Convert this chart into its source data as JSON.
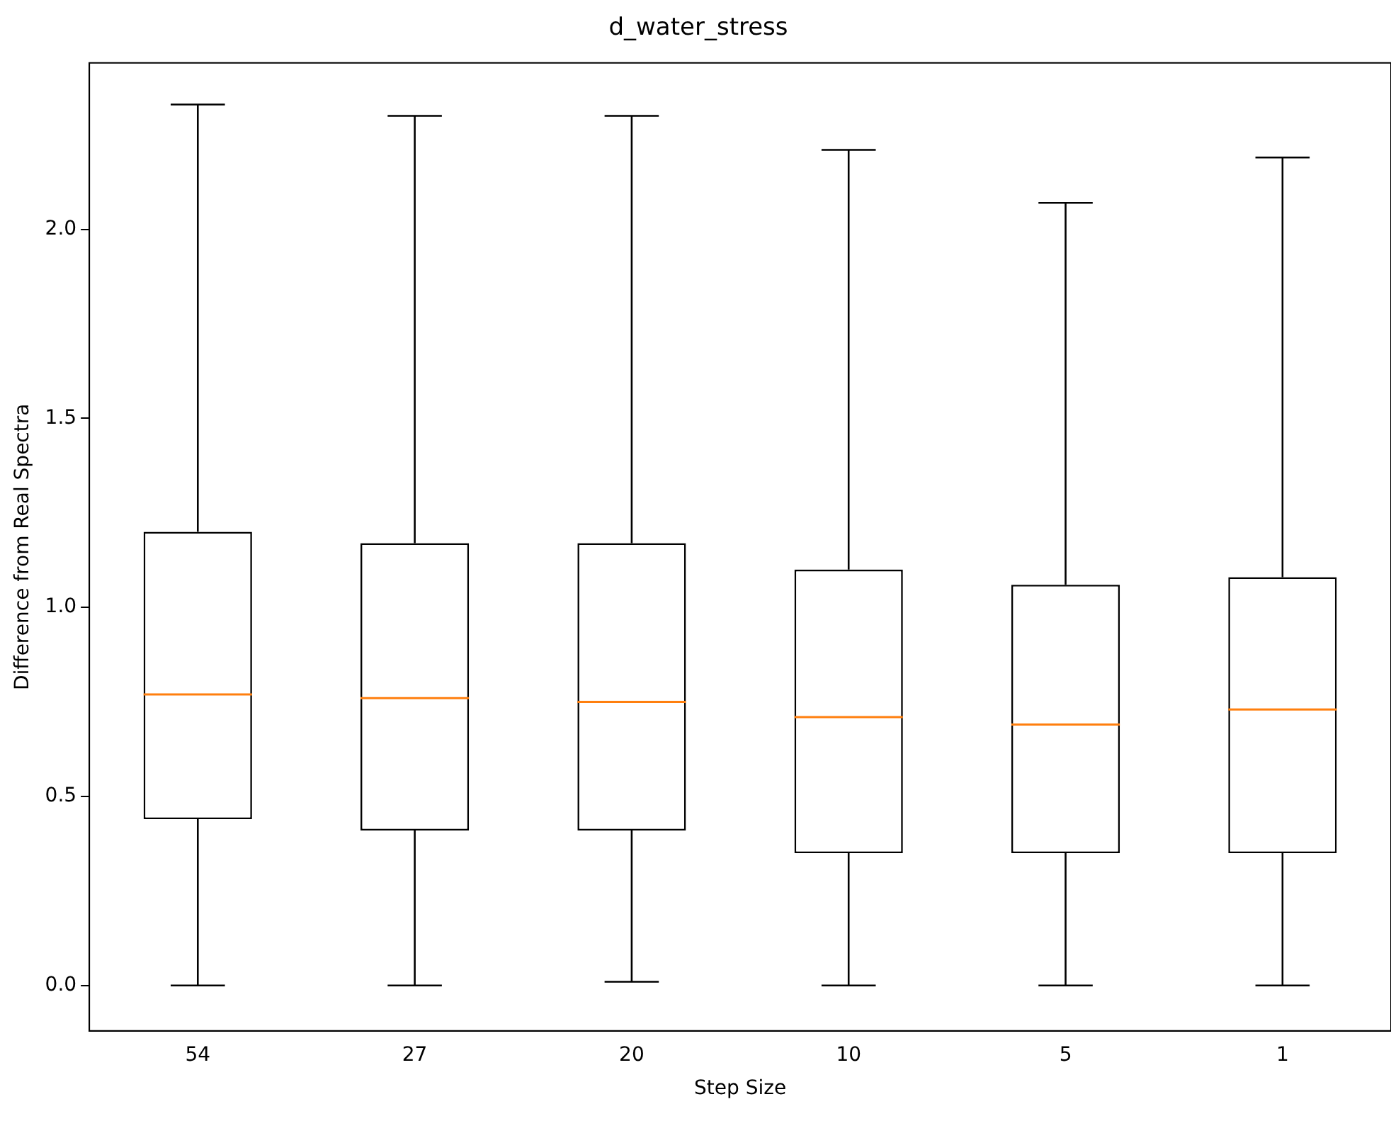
{
  "chart_data": {
    "type": "box",
    "title": "d_water_stress",
    "xlabel": "Step Size",
    "ylabel": "Difference from Real Spectra",
    "categories": [
      "54",
      "27",
      "20",
      "10",
      "5",
      "1"
    ],
    "boxes": [
      {
        "low": 0.0,
        "q1": 0.44,
        "median": 0.77,
        "q3": 1.2,
        "high": 2.33
      },
      {
        "low": 0.0,
        "q1": 0.41,
        "median": 0.76,
        "q3": 1.17,
        "high": 2.3
      },
      {
        "low": 0.01,
        "q1": 0.41,
        "median": 0.75,
        "q3": 1.17,
        "high": 2.3
      },
      {
        "low": 0.0,
        "q1": 0.35,
        "median": 0.71,
        "q3": 1.1,
        "high": 2.21
      },
      {
        "low": 0.0,
        "q1": 0.35,
        "median": 0.69,
        "q3": 1.06,
        "high": 2.07
      },
      {
        "low": 0.0,
        "q1": 0.35,
        "median": 0.73,
        "q3": 1.08,
        "high": 2.19
      }
    ],
    "ylim": [
      -0.12,
      2.44
    ],
    "yticks": [
      {
        "value": 0,
        "label": "0.0"
      },
      {
        "value": 0.5,
        "label": "0.5"
      },
      {
        "value": 1,
        "label": "1.0"
      },
      {
        "value": 1.5,
        "label": "1.5"
      },
      {
        "value": 2,
        "label": "2.0"
      }
    ],
    "grid": false,
    "legend": false
  }
}
